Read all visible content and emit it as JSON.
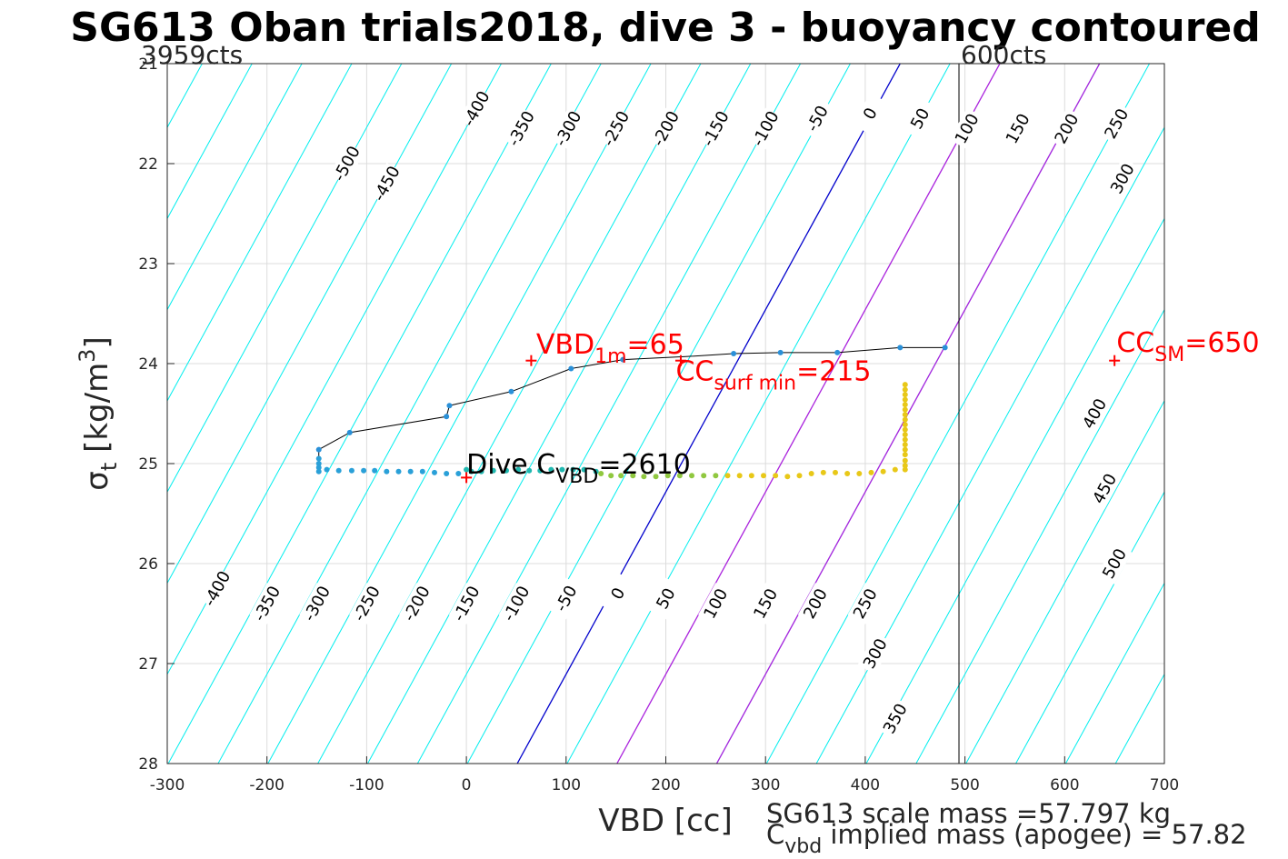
{
  "chart_data": {
    "type": "scatter",
    "title": "SG613 Oban trials2018, dive 3 - buoyancy contoured",
    "xlabel": "VBD [cc]",
    "ylabel_main": "σ",
    "ylabel_sub": "t",
    "ylabel_unit_pre": " [kg/m",
    "ylabel_unit_sup": "3",
    "ylabel_unit_post": "]",
    "xlim": [
      -300,
      700
    ],
    "ylim": [
      21,
      28
    ],
    "y_reversed": true,
    "grid": true,
    "x_ticks": [
      "-300",
      "-200",
      "-100",
      "0",
      "100",
      "200",
      "300",
      "400",
      "500",
      "600",
      "700"
    ],
    "y_ticks": [
      "21",
      "22",
      "23",
      "24",
      "25",
      "26",
      "27",
      "28"
    ],
    "corner_left": "3959cts",
    "corner_right": "600cts",
    "limit_line_x": 494,
    "zero_line": {
      "x_at_top": 435,
      "x_at_bottom": 51,
      "color": "#0000cc"
    },
    "magenta_lines": [
      {
        "x_at_top": 535,
        "x_at_bottom": 151,
        "color": "#aa22dd"
      },
      {
        "x_at_top": 635,
        "x_at_bottom": 251,
        "color": "#aa22dd"
      }
    ],
    "contour_color": "#00eeee",
    "contour_offsets": [
      -900,
      -850,
      -800,
      -750,
      -700,
      -650,
      -600,
      -550,
      -500,
      -450,
      -400,
      -350,
      -300,
      -250,
      -200,
      -150,
      -100,
      -50,
      50,
      200,
      250,
      300,
      350,
      400,
      450,
      500,
      550,
      600,
      650,
      700,
      750,
      800,
      850,
      900
    ],
    "contour_labels_top": [
      {
        "text": "-500",
        "x": -120,
        "y": 22.0
      },
      {
        "text": "-450",
        "x": -80,
        "y": 22.2
      },
      {
        "text": "-400",
        "x": 10,
        "y": 21.45
      },
      {
        "text": "-350",
        "x": 55,
        "y": 21.65
      },
      {
        "text": "-300",
        "x": 102,
        "y": 21.65
      },
      {
        "text": "-250",
        "x": 150,
        "y": 21.65
      },
      {
        "text": "-200",
        "x": 200,
        "y": 21.65
      },
      {
        "text": "-150",
        "x": 250,
        "y": 21.65
      },
      {
        "text": "-100",
        "x": 300,
        "y": 21.65
      },
      {
        "text": "-50",
        "x": 352,
        "y": 21.55
      },
      {
        "text": "0",
        "x": 405,
        "y": 21.5
      },
      {
        "text": "50",
        "x": 455,
        "y": 21.55
      },
      {
        "text": "100",
        "x": 502,
        "y": 21.65
      },
      {
        "text": "150",
        "x": 553,
        "y": 21.65
      },
      {
        "text": "200",
        "x": 602,
        "y": 21.65
      },
      {
        "text": "250",
        "x": 652,
        "y": 21.6
      },
      {
        "text": "300",
        "x": 658,
        "y": 22.15
      }
    ],
    "contour_labels_bottom": [
      {
        "text": "-400",
        "x": -250,
        "y": 26.25
      },
      {
        "text": "-350",
        "x": -200,
        "y": 26.4
      },
      {
        "text": "-300",
        "x": -150,
        "y": 26.4
      },
      {
        "text": "-250",
        "x": -100,
        "y": 26.4
      },
      {
        "text": "-200",
        "x": -50,
        "y": 26.4
      },
      {
        "text": "-150",
        "x": 0,
        "y": 26.4
      },
      {
        "text": "-100",
        "x": 50,
        "y": 26.4
      },
      {
        "text": "-50",
        "x": 100,
        "y": 26.35
      },
      {
        "text": "0",
        "x": 152,
        "y": 26.3
      },
      {
        "text": "50",
        "x": 200,
        "y": 26.35
      },
      {
        "text": "100",
        "x": 250,
        "y": 26.4
      },
      {
        "text": "150",
        "x": 300,
        "y": 26.4
      },
      {
        "text": "200",
        "x": 350,
        "y": 26.4
      },
      {
        "text": "250",
        "x": 400,
        "y": 26.4
      },
      {
        "text": "300",
        "x": 410,
        "y": 26.9
      },
      {
        "text": "350",
        "x": 430,
        "y": 27.55
      },
      {
        "text": "400",
        "x": 630,
        "y": 24.5
      },
      {
        "text": "450",
        "x": 640,
        "y": 25.25
      },
      {
        "text": "500",
        "x": 650,
        "y": 26.0
      }
    ],
    "trace_line": [
      [
        480,
        23.84
      ],
      [
        435,
        23.84
      ],
      [
        372,
        23.89
      ],
      [
        315,
        23.89
      ],
      [
        268,
        23.9
      ],
      [
        220,
        23.93
      ],
      [
        157,
        23.96
      ],
      [
        105,
        24.05
      ],
      [
        45,
        24.28
      ],
      [
        -17,
        24.42
      ],
      [
        -20,
        24.53
      ],
      [
        -117,
        24.69
      ],
      [
        -148,
        24.86
      ],
      [
        -148,
        25.0
      ]
    ],
    "trace_points": [
      [
        480,
        23.84
      ],
      [
        435,
        23.84
      ],
      [
        372,
        23.89
      ],
      [
        315,
        23.89
      ],
      [
        268,
        23.9
      ],
      [
        157,
        23.96
      ],
      [
        105,
        24.05
      ],
      [
        45,
        24.28
      ],
      [
        -17,
        24.42
      ],
      [
        -20,
        24.53
      ],
      [
        -117,
        24.69
      ],
      [
        -148,
        24.86
      ]
    ],
    "series": [
      {
        "name": "descent_blue",
        "color": "#2aa0d8",
        "points": [
          [
            -148,
            24.95
          ],
          [
            -148,
            25.0
          ],
          [
            -148,
            25.04
          ],
          [
            -148,
            25.08
          ],
          [
            -140,
            25.06
          ],
          [
            -128,
            25.07
          ],
          [
            -115,
            25.07
          ],
          [
            -103,
            25.07
          ],
          [
            -92,
            25.07
          ],
          [
            -80,
            25.08
          ],
          [
            -68,
            25.08
          ],
          [
            -56,
            25.08
          ],
          [
            -44,
            25.08
          ],
          [
            -32,
            25.09
          ],
          [
            -20,
            25.1
          ],
          [
            -8,
            25.1
          ]
        ]
      },
      {
        "name": "descent_teal",
        "color": "#20b8b0",
        "points": [
          [
            0,
            25.06
          ],
          [
            5,
            25.08
          ],
          [
            15,
            25.08
          ],
          [
            27,
            25.07
          ],
          [
            40,
            25.07
          ],
          [
            52,
            25.06
          ],
          [
            63,
            25.07
          ],
          [
            74,
            25.07
          ],
          [
            85,
            25.06
          ],
          [
            96,
            25.06
          ],
          [
            107,
            25.06
          ],
          [
            118,
            25.06
          ],
          [
            130,
            25.08
          ]
        ]
      },
      {
        "name": "descent_green",
        "color": "#90c840",
        "points": [
          [
            135,
            25.1
          ],
          [
            145,
            25.12
          ],
          [
            155,
            25.12
          ],
          [
            167,
            25.12
          ],
          [
            178,
            25.13
          ],
          [
            190,
            25.13
          ],
          [
            202,
            25.12
          ],
          [
            214,
            25.12
          ],
          [
            226,
            25.12
          ],
          [
            238,
            25.12
          ],
          [
            250,
            25.12
          ]
        ]
      },
      {
        "name": "descent_yellow",
        "color": "#e8c818",
        "points": [
          [
            262,
            25.12
          ],
          [
            274,
            25.12
          ],
          [
            286,
            25.12
          ],
          [
            298,
            25.12
          ],
          [
            310,
            25.12
          ],
          [
            322,
            25.13
          ],
          [
            334,
            25.12
          ],
          [
            346,
            25.1
          ],
          [
            358,
            25.09
          ],
          [
            370,
            25.09
          ],
          [
            382,
            25.1
          ],
          [
            394,
            25.1
          ],
          [
            406,
            25.09
          ],
          [
            418,
            25.08
          ],
          [
            430,
            25.06
          ],
          [
            440,
            25.06
          ],
          [
            440,
            25.02
          ],
          [
            440,
            24.97
          ],
          [
            440,
            24.91
          ],
          [
            440,
            24.86
          ],
          [
            440,
            24.81
          ],
          [
            440,
            24.76
          ],
          [
            440,
            24.71
          ],
          [
            440,
            24.66
          ],
          [
            440,
            24.61
          ],
          [
            440,
            24.56
          ],
          [
            440,
            24.51
          ],
          [
            440,
            24.46
          ],
          [
            440,
            24.41
          ],
          [
            440,
            24.36
          ],
          [
            440,
            24.31
          ],
          [
            440,
            24.26
          ],
          [
            440,
            24.21
          ]
        ]
      }
    ],
    "markers": [
      {
        "x": 0,
        "y": 25.14,
        "color": "#ff0000"
      },
      {
        "x": 65,
        "y": 23.97,
        "color": "#ff0000"
      },
      {
        "x": 215,
        "y": 23.97,
        "color": "#ff0000"
      },
      {
        "x": 650,
        "y": 23.97,
        "color": "#ff0000"
      }
    ],
    "annotations": {
      "vbd1m": {
        "main": "VBD",
        "sub": "1m",
        "post": "=65",
        "x": 70,
        "y": 23.9
      },
      "ccsurf": {
        "main": "CC",
        "sub": "surf min",
        "post": "=215",
        "x": 210,
        "y": 24.17
      },
      "ccsm": {
        "main": "CC",
        "sub": "SM",
        "post": "=650",
        "x": 652,
        "y": 23.88
      },
      "dive": {
        "main": "Dive C",
        "sub": "VBD",
        "post": "=2610",
        "x": 0,
        "y": 25.1
      }
    },
    "footer_line1": "SG613 scale mass =57.797 kg",
    "footer_line2_main": "C",
    "footer_line2_sub": "vbd",
    "footer_line2_post": " implied mass (apogee) = 57.82"
  }
}
